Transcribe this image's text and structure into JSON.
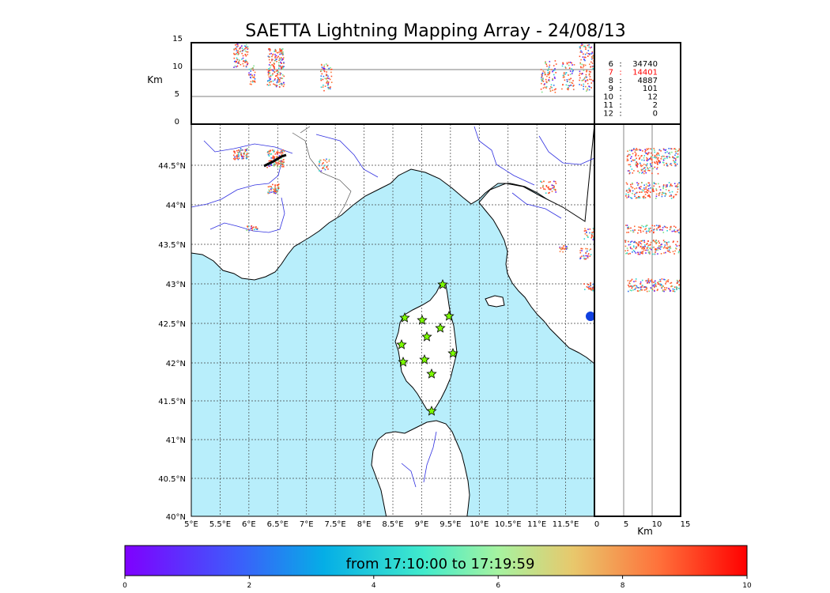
{
  "title": "SAETTA Lightning Mapping Array - 24/08/13",
  "top_panel": {
    "ylabel": "Km",
    "yticks": [
      "15",
      "10",
      "5",
      "0"
    ]
  },
  "side_panel": {
    "xlabel": "Km",
    "xticks": [
      "0",
      "5",
      "10",
      "15"
    ]
  },
  "map": {
    "lon_ticks": [
      "5°E",
      "5.5°E",
      "6°E",
      "6.5°E",
      "7°E",
      "7.5°E",
      "8°E",
      "8.5°E",
      "9°E",
      "9.5°E",
      "10°E",
      "10.5°E",
      "11°E",
      "11.5°E"
    ],
    "lat_ticks": [
      "44.5°N",
      "44°N",
      "43.5°N",
      "43°N",
      "42.5°N",
      "42°N",
      "41.5°N",
      "41°N",
      "40.5°N",
      "40°N"
    ]
  },
  "stations_table": [
    {
      "stations": "6",
      "sep": ":",
      "count": "34740",
      "highlight": false
    },
    {
      "stations": "7",
      "sep": ":",
      "count": "14401",
      "highlight": true
    },
    {
      "stations": "8",
      "sep": ":",
      "count": "4887",
      "highlight": false
    },
    {
      "stations": "9",
      "sep": ":",
      "count": "101",
      "highlight": false
    },
    {
      "stations": "10",
      "sep": ":",
      "count": "12",
      "highlight": false
    },
    {
      "stations": "11",
      "sep": ":",
      "count": "2",
      "highlight": false
    },
    {
      "stations": "12",
      "sep": ":",
      "count": "0",
      "highlight": false
    }
  ],
  "colorbar": {
    "label": "from 17:10:00 to 17:19:59",
    "ticks": [
      "0",
      "2",
      "4",
      "6",
      "8",
      "10"
    ]
  },
  "colors": {
    "sea": "#b8eefb",
    "river": "#3030e0",
    "station": "#7cfc00",
    "dominant_point": "#ff4d26",
    "highlight_text": "#ff0000"
  }
}
